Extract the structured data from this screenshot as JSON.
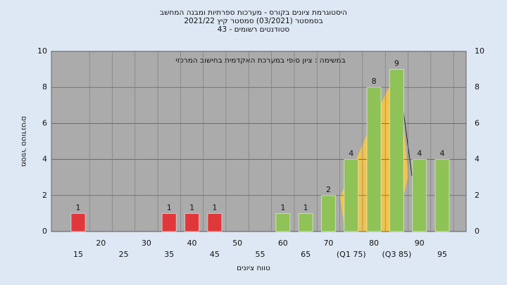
{
  "chart_data": {
    "type": "bar",
    "title": "היסטוגרמת ציונים בקורס - מערכות ספרתיות ומבנה המחשב",
    "subtitle": "בסמסטר (03/2021) סמסטר קיץ 2021/22",
    "subtitle2": "סטודנטים רשומים - 43",
    "annotation": "במשימה : ציון סופי במערכת האקדמית בחישוב המרכזי",
    "x_label": "טווח ציונים",
    "y_label": "מספר סטודנטים",
    "categories": [
      "15",
      "20",
      "25",
      "30",
      "35",
      "40",
      "45",
      "50",
      "55",
      "60",
      "65",
      "70",
      "(Q1 75)",
      "80",
      "(Q3 85)",
      "90",
      "95"
    ],
    "values": [
      1,
      0,
      0,
      0,
      1,
      1,
      1,
      0,
      0,
      1,
      1,
      2,
      4,
      8,
      9,
      4,
      4
    ],
    "colors": [
      "#e0383a",
      "#e0383a",
      "#e0383a",
      "#e0383a",
      "#e0383a",
      "#e0383a",
      "#e0383a",
      "#e0383a",
      "#8fc257",
      "#8fc257",
      "#8fc257",
      "#8fc257",
      "#8fc257",
      "#8fc257",
      "#8fc257",
      "#8fc257",
      "#8fc257"
    ],
    "ylim": [
      0,
      10
    ],
    "yticks": [
      0,
      2,
      4,
      6,
      8,
      10
    ],
    "grid": true
  }
}
